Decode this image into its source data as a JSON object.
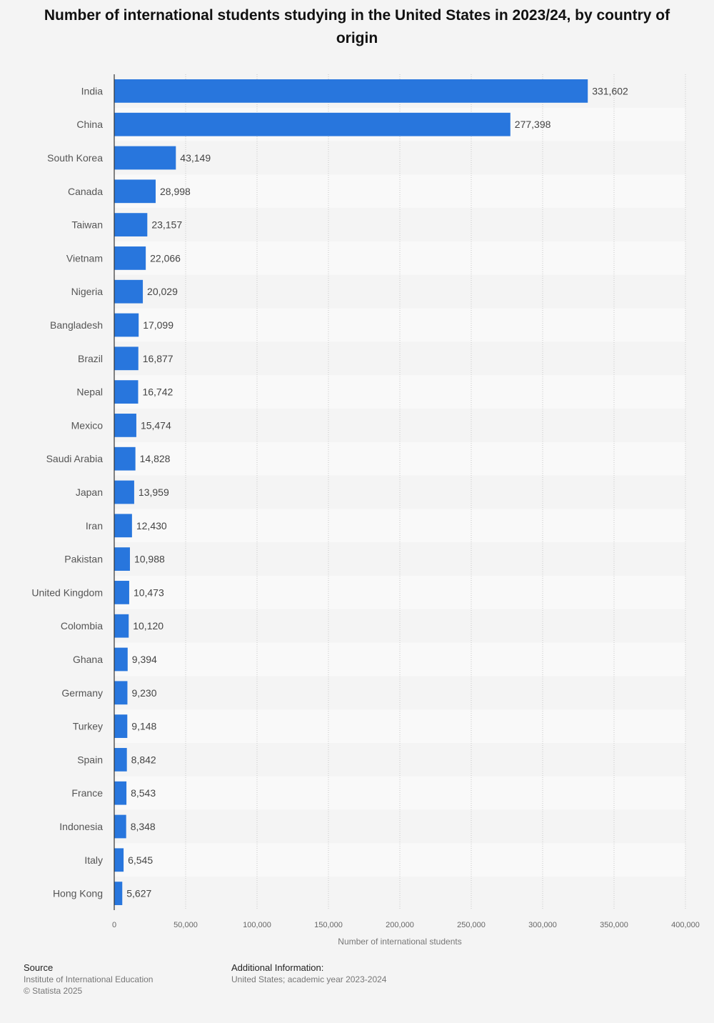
{
  "title": "Number of international students studying in the United States in 2023/24, by country of origin",
  "chart_data": {
    "type": "bar",
    "orientation": "horizontal",
    "categories": [
      "India",
      "China",
      "South Korea",
      "Canada",
      "Taiwan",
      "Vietnam",
      "Nigeria",
      "Bangladesh",
      "Brazil",
      "Nepal",
      "Mexico",
      "Saudi Arabia",
      "Japan",
      "Iran",
      "Pakistan",
      "United Kingdom",
      "Colombia",
      "Ghana",
      "Germany",
      "Turkey",
      "Spain",
      "France",
      "Indonesia",
      "Italy",
      "Hong Kong"
    ],
    "values": [
      331602,
      277398,
      43149,
      28998,
      23157,
      22066,
      20029,
      17099,
      16877,
      16742,
      15474,
      14828,
      13959,
      12430,
      10988,
      10473,
      10120,
      9394,
      9230,
      9148,
      8842,
      8543,
      8348,
      6545,
      5627
    ],
    "value_labels": [
      "331,602",
      "277,398",
      "43,149",
      "28,998",
      "23,157",
      "22,066",
      "20,029",
      "17,099",
      "16,877",
      "16,742",
      "15,474",
      "14,828",
      "13,959",
      "12,430",
      "10,988",
      "10,473",
      "10,120",
      "9,394",
      "9,230",
      "9,148",
      "8,842",
      "8,543",
      "8,348",
      "6,545",
      "5,627"
    ],
    "xlabel": "Number of international students",
    "ylabel": "",
    "xlim": [
      0,
      400000
    ],
    "xticks": [
      0,
      50000,
      100000,
      150000,
      200000,
      250000,
      300000,
      350000,
      400000
    ],
    "xtick_labels": [
      "0",
      "50,000",
      "100,000",
      "150,000",
      "200,000",
      "250,000",
      "300,000",
      "350,000",
      "400,000"
    ],
    "grid": true,
    "bar_color": "#2876dd"
  },
  "footer": {
    "source_heading": "Source",
    "source_text": "Institute of International Education",
    "copyright": "© Statista 2025",
    "info_heading": "Additional Information:",
    "info_text": "United States; academic year 2023-2024"
  }
}
